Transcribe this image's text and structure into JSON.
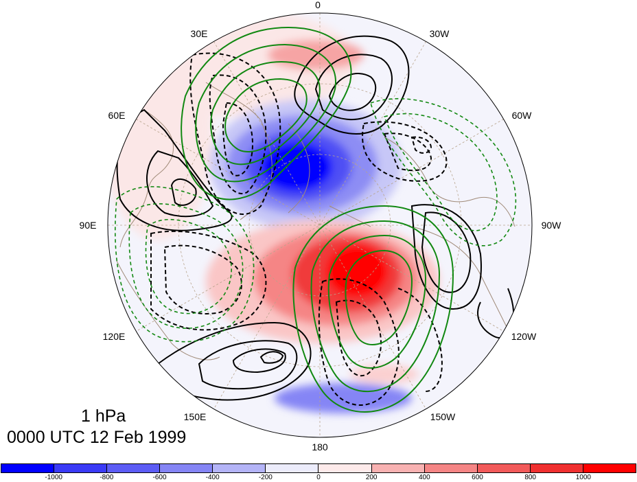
{
  "map": {
    "projection": "north polar stereographic",
    "longitude_labels": [
      "0",
      "30W",
      "60W",
      "90W",
      "120W",
      "150W",
      "180",
      "150E",
      "120E",
      "90E",
      "60E",
      "30E"
    ],
    "colors": {
      "positive_contour": "#000000",
      "negative_contour": "#000000",
      "positive_overlay": "#118811",
      "negative_overlay": "#118811",
      "coastline": "#a08a78",
      "graticule": "#b8a48c"
    }
  },
  "title": {
    "level": "1 hPa",
    "time": "0000 UTC 12 Feb 1999"
  },
  "colorbar": {
    "colors": [
      "#0000ff",
      "#3a3af6",
      "#5c5cf5",
      "#8585f5",
      "#b4b4f7",
      "#ececfb",
      "#fdeaea",
      "#f8b2b2",
      "#f58585",
      "#f25a5a",
      "#f03030",
      "#ff0000"
    ],
    "labels": [
      "-1000",
      "-800",
      "-600",
      "-400",
      "-200",
      "0",
      "200",
      "400",
      "600",
      "800",
      "1000"
    ]
  }
}
